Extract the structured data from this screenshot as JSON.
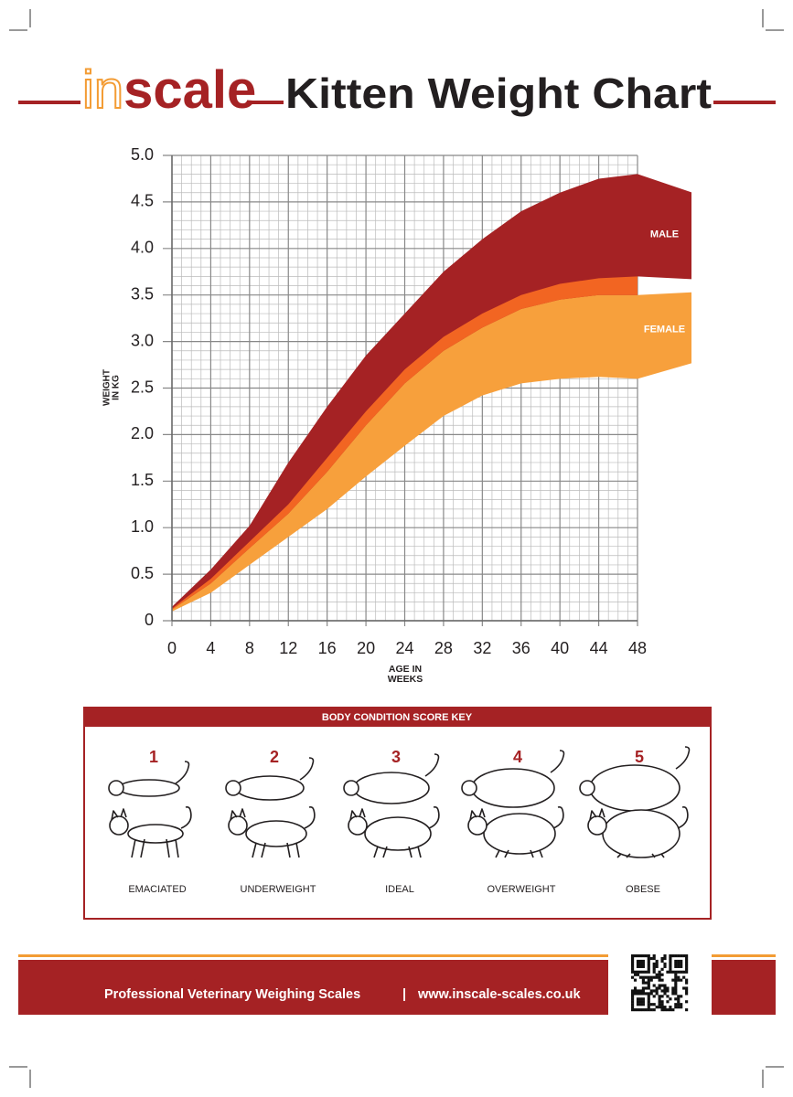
{
  "header": {
    "logo_prefix": "in",
    "logo_suffix": "scale",
    "title": "Kitten Weight Chart"
  },
  "chart_data": {
    "type": "range_area",
    "x_label_lines": [
      "AGE IN",
      "WEEKS"
    ],
    "y_label_lines": [
      "WEIGHT",
      "IN KG"
    ],
    "x": [
      0,
      4,
      8,
      12,
      16,
      20,
      24,
      28,
      32,
      36,
      40,
      44,
      48
    ],
    "series": [
      {
        "name": "MALE",
        "color": "#a52224",
        "upper": [
          0.15,
          0.55,
          1.02,
          1.7,
          2.3,
          2.85,
          3.3,
          3.75,
          4.1,
          4.4,
          4.6,
          4.75,
          4.8
        ],
        "lower": [
          0.12,
          0.4,
          0.78,
          1.15,
          1.6,
          2.1,
          2.55,
          2.9,
          3.15,
          3.35,
          3.45,
          3.5,
          3.5
        ]
      },
      {
        "name": "FEMALE",
        "color": "#f7a03c",
        "upper": [
          0.13,
          0.45,
          0.85,
          1.25,
          1.75,
          2.25,
          2.7,
          3.05,
          3.3,
          3.5,
          3.62,
          3.68,
          3.7
        ],
        "lower": [
          0.1,
          0.3,
          0.6,
          0.9,
          1.2,
          1.55,
          1.88,
          2.2,
          2.42,
          2.55,
          2.6,
          2.62,
          2.6
        ]
      }
    ],
    "overlap_color": "#f26522",
    "xlim": [
      0,
      48
    ],
    "xticks": [
      0,
      4,
      8,
      12,
      16,
      20,
      24,
      28,
      32,
      36,
      40,
      44,
      48
    ],
    "ylim": [
      0,
      5
    ],
    "yticks": [
      0,
      0.5,
      {
        "value": 1,
        "label": "1.0"
      },
      1.5,
      {
        "value": 2,
        "label": "2.0"
      },
      2.5,
      {
        "value": 3,
        "label": "3.0"
      },
      3.5,
      {
        "value": 4,
        "label": "4.0"
      },
      4.5,
      {
        "value": 5,
        "label": "5.0"
      }
    ],
    "grid": true
  },
  "body_condition_key": {
    "title": "BODY CONDITION SCORE KEY",
    "items": [
      {
        "score": 1,
        "label": "EMACIATED"
      },
      {
        "score": 2,
        "label": "UNDERWEIGHT"
      },
      {
        "score": 3,
        "label": "IDEAL"
      },
      {
        "score": 4,
        "label": "OVERWEIGHT"
      },
      {
        "score": 5,
        "label": "OBESE"
      }
    ]
  },
  "footer": {
    "tagline": "Professional Veterinary Weighing Scales",
    "separator": "|",
    "website": "www.inscale-scales.co.uk"
  }
}
